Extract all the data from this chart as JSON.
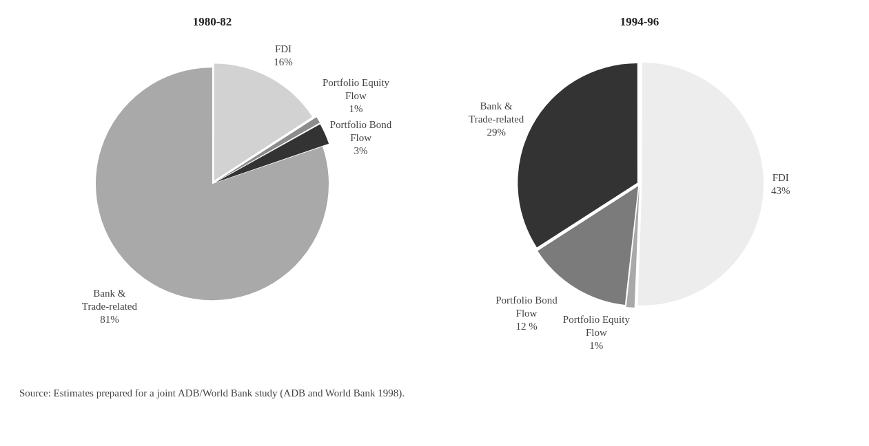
{
  "chart_data": [
    {
      "type": "pie",
      "title": "1980-82",
      "categories": [
        "FDI",
        "Portfolio Equity Flow",
        "Portfolio Bond Flow",
        "Bank & Trade-related"
      ],
      "values": [
        16,
        1,
        3,
        81
      ],
      "colors": [
        "#d2d2d2",
        "#8c8c8c",
        "#333333",
        "#a9a9a9"
      ],
      "value_labels": [
        "16%",
        "1%",
        "3%",
        "81%"
      ],
      "annotations": [
        "Source: Estimates prepared for a joint ADB/World Bank study (ADB and World Bank 1998)."
      ]
    },
    {
      "type": "pie",
      "title": "1994-96",
      "categories": [
        "FDI",
        "Portfolio Equity Flow",
        "Portfolio Bond Flow",
        "Bank & Trade-related"
      ],
      "values": [
        43,
        1,
        12,
        29
      ],
      "colors": [
        "#ededed",
        "#a9a9a9",
        "#7b7b7b",
        "#333333"
      ],
      "value_labels": [
        "43%",
        "1%",
        "12 %",
        "29%"
      ]
    }
  ]
}
